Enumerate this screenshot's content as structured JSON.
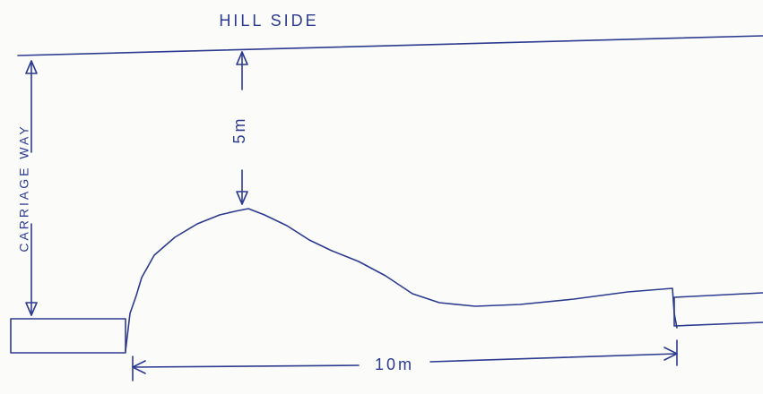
{
  "title": "HILL SIDE",
  "labels": {
    "carriageway": "CARRIAGE WAY",
    "height": "5m",
    "width": "10m"
  }
}
